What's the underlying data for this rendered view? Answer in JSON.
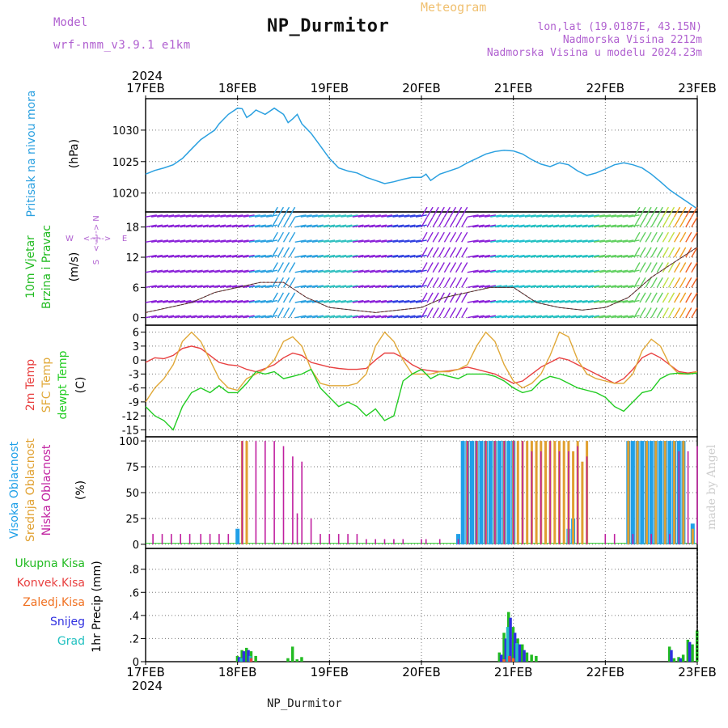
{
  "header": {
    "meteogram": "Meteogram",
    "title": "NP_Durmitor",
    "model_label": "Model",
    "model_name": "wrf-nmm_v3.9.1  e1km",
    "location_lines": [
      "lon,lat (19.0187E, 43.15N)",
      "Nadmorska Visina 2212m",
      "Nadmorska Visina u modelu 2024.23m"
    ]
  },
  "footer": {
    "station": "NP_Durmitor",
    "credit": "made by Angel"
  },
  "colors": {
    "pressure": "#2aa0e0",
    "wind_title": "#22bb22",
    "temp2m": "#e84040",
    "sfc": "#e0a838",
    "dewpt": "#22cc22",
    "high_cloud": "#20a0e8",
    "mid_cloud": "#e0a030",
    "low_cloud": "#c020a0",
    "total_precip": "#22bb22",
    "conv_precip": "#e84040",
    "frozen_precip": "#f07020",
    "snow": "#3030e0",
    "grad": "#20c0c0"
  },
  "chart_data": [
    {
      "type": "line",
      "panel": "pressure",
      "ylabel_left": "Pritisak na nivou mora",
      "ylabel": "(hPa)",
      "yticks": [
        1020,
        1025,
        1030
      ],
      "ylim": [
        1017,
        1035
      ],
      "x_unit": "days from 17FEB 00Z",
      "x": [
        0,
        0.1,
        0.2,
        0.3,
        0.4,
        0.5,
        0.6,
        0.7,
        0.75,
        0.8,
        0.9,
        1.0,
        1.05,
        1.1,
        1.15,
        1.2,
        1.3,
        1.4,
        1.5,
        1.55,
        1.6,
        1.65,
        1.7,
        1.8,
        1.9,
        2.0,
        2.1,
        2.2,
        2.3,
        2.4,
        2.5,
        2.6,
        2.7,
        2.8,
        2.9,
        3.0,
        3.05,
        3.1,
        3.2,
        3.3,
        3.4,
        3.5,
        3.6,
        3.7,
        3.8,
        3.9,
        4.0,
        4.1,
        4.2,
        4.3,
        4.4,
        4.5,
        4.6,
        4.7,
        4.8,
        4.9,
        5.0,
        5.1,
        5.2,
        5.3,
        5.4,
        5.5,
        5.6,
        5.7,
        5.8,
        5.9,
        6.0
      ],
      "values": [
        1023,
        1023.6,
        1024,
        1024.5,
        1025.5,
        1027,
        1028.5,
        1029.5,
        1030,
        1031,
        1032.5,
        1033.5,
        1033.4,
        1032,
        1032.5,
        1033.2,
        1032.5,
        1033.5,
        1032.5,
        1031.2,
        1031.8,
        1032.5,
        1031,
        1029.5,
        1027.5,
        1025.5,
        1024,
        1023.5,
        1023.2,
        1022.5,
        1022,
        1021.5,
        1021.8,
        1022.2,
        1022.5,
        1022.5,
        1023,
        1022,
        1023,
        1023.5,
        1024,
        1024.8,
        1025.5,
        1026.2,
        1026.6,
        1026.8,
        1026.7,
        1026.2,
        1025.3,
        1024.6,
        1024.2,
        1024.8,
        1024.5,
        1023.5,
        1022.8,
        1023.2,
        1023.8,
        1024.5,
        1024.8,
        1024.5,
        1024,
        1023,
        1021.8,
        1020.5,
        1019.5,
        1018.5,
        1017.5
      ],
      "extra_label": "1030"
    },
    {
      "type": "line",
      "panel": "wind",
      "ylabel_left": "10m Vjetar",
      "ylabel_left2": "Brzina i Pravac",
      "ylabel": "(m/s)",
      "yticks": [
        0,
        6,
        12,
        18
      ],
      "ylim": [
        -1.5,
        21
      ],
      "compass": [
        "N",
        "W",
        "E",
        "S",
        "<--|-->"
      ],
      "x": [
        0,
        0.25,
        0.5,
        0.75,
        1.0,
        1.25,
        1.5,
        1.75,
        2.0,
        2.25,
        2.5,
        2.75,
        3.0,
        3.25,
        3.5,
        3.75,
        4.0,
        4.25,
        4.5,
        4.75,
        5.0,
        5.25,
        5.5,
        5.75,
        6.0
      ],
      "values": [
        1,
        2,
        3,
        5,
        6,
        7,
        7,
        4,
        2,
        1.5,
        1,
        1.5,
        2,
        4,
        5,
        6,
        6,
        3,
        2,
        1.5,
        2,
        4,
        8,
        11,
        14
      ]
    },
    {
      "type": "line",
      "panel": "temperature",
      "ylabel_left": [
        "2m Temp",
        "SFC Temp",
        "dewpt Temp"
      ],
      "ylabel": "(C)",
      "yticks": [
        -15,
        -12,
        -9,
        -6,
        -3,
        0,
        3,
        6
      ],
      "ylim": [
        -16.5,
        7.5
      ],
      "x": [
        0,
        0.1,
        0.2,
        0.3,
        0.4,
        0.5,
        0.6,
        0.7,
        0.8,
        0.9,
        1.0,
        1.1,
        1.2,
        1.3,
        1.4,
        1.5,
        1.6,
        1.7,
        1.8,
        1.9,
        2.0,
        2.1,
        2.2,
        2.3,
        2.4,
        2.5,
        2.6,
        2.7,
        2.8,
        2.9,
        3.0,
        3.1,
        3.2,
        3.3,
        3.4,
        3.5,
        3.6,
        3.7,
        3.8,
        3.9,
        4.0,
        4.1,
        4.2,
        4.3,
        4.4,
        4.5,
        4.6,
        4.7,
        4.8,
        4.9,
        5.0,
        5.1,
        5.2,
        5.3,
        5.4,
        5.5,
        5.6,
        5.7,
        5.8,
        5.9,
        6.0
      ],
      "series": [
        {
          "name": "2m Temp",
          "values": [
            -0.5,
            0.5,
            0.3,
            1.0,
            2.5,
            3.0,
            2.5,
            1.0,
            -0.5,
            -1.0,
            -1.2,
            -2.0,
            -2.5,
            -1.8,
            -1.0,
            0.5,
            1.5,
            1.0,
            -0.5,
            -1.0,
            -1.5,
            -1.8,
            -2.0,
            -2.0,
            -1.8,
            0,
            1.5,
            1.5,
            0.5,
            -1.0,
            -2.0,
            -2.3,
            -2.5,
            -2.3,
            -2.0,
            -1.5,
            -2.0,
            -2.5,
            -3.0,
            -4.0,
            -5.0,
            -4.5,
            -3.0,
            -1.5,
            -0.5,
            0.5,
            0.0,
            -1.0,
            -2.0,
            -3.0,
            -4.0,
            -5.0,
            -4.0,
            -2.0,
            0.5,
            1.5,
            0.5,
            -1.0,
            -2.5,
            -2.8,
            -2.5
          ]
        },
        {
          "name": "SFC Temp",
          "values": [
            -9,
            -6,
            -4,
            -1,
            4,
            6,
            4,
            0,
            -4,
            -6,
            -6.5,
            -4,
            -3,
            -2,
            0,
            4,
            5,
            3,
            -2,
            -5,
            -5.5,
            -5.5,
            -5.5,
            -5,
            -3,
            3,
            6,
            4,
            0,
            -3,
            -3,
            -3,
            -2.5,
            -2.5,
            -2,
            -1,
            3,
            6,
            4,
            -1,
            -4.5,
            -6,
            -5,
            -3,
            1,
            6,
            5,
            0,
            -3,
            -4,
            -4.5,
            -5,
            -5,
            -3,
            2,
            4.5,
            3,
            -1,
            -3,
            -3,
            -2.5
          ]
        },
        {
          "name": "dewpt Temp",
          "values": [
            -10,
            -12,
            -13,
            -15,
            -10,
            -7,
            -6,
            -7,
            -5.5,
            -7,
            -7,
            -5,
            -2.5,
            -3,
            -2.5,
            -4,
            -3.5,
            -3,
            -2,
            -6,
            -8,
            -10,
            -9,
            -10,
            -12,
            -10.5,
            -13,
            -12,
            -4.5,
            -3,
            -2,
            -4,
            -3,
            -3.5,
            -4,
            -3,
            -3,
            -3,
            -3.5,
            -4.5,
            -6,
            -7,
            -6.5,
            -4.5,
            -3.5,
            -4,
            -5,
            -6,
            -6.5,
            -7,
            -8,
            -10,
            -11,
            -9,
            -7,
            -6.5,
            -4,
            -3,
            -2.8,
            -3,
            -2.8
          ]
        }
      ]
    },
    {
      "type": "bar",
      "panel": "cloud",
      "ylabel_left": [
        "Visoka Oblacnost",
        "Srednja Oblacnost",
        "Niska Oblacnost"
      ],
      "ylabel": "(%)",
      "yticks": [
        0,
        25,
        50,
        75,
        100
      ],
      "ylim": [
        -4,
        104
      ],
      "series": [
        {
          "name": "Visoka Oblacnost",
          "x": [
            1.0,
            3.4,
            3.45,
            3.5,
            3.55,
            3.6,
            3.65,
            3.7,
            3.75,
            3.8,
            3.85,
            3.9,
            3.95,
            4.0,
            4.6,
            4.65,
            5.25,
            5.3,
            5.35,
            5.4,
            5.45,
            5.5,
            5.55,
            5.6,
            5.65,
            5.7,
            5.75,
            5.8,
            5.85,
            5.95
          ],
          "values": [
            15,
            10,
            100,
            100,
            100,
            100,
            100,
            100,
            100,
            100,
            100,
            100,
            100,
            100,
            15,
            25,
            100,
            100,
            100,
            100,
            100,
            100,
            100,
            100,
            100,
            100,
            100,
            100,
            100,
            20
          ]
        },
        {
          "name": "Srednja Oblacnost",
          "x": [
            1.05,
            1.1,
            3.5,
            3.6,
            3.7,
            3.8,
            3.9,
            4.0,
            4.05,
            4.1,
            4.15,
            4.2,
            4.25,
            4.3,
            4.35,
            4.4,
            4.45,
            4.5,
            4.55,
            4.6,
            4.65,
            4.7,
            4.75,
            4.8,
            5.25,
            5.35,
            5.45,
            5.55,
            5.65,
            5.75,
            5.85,
            5.95
          ],
          "values": [
            100,
            100,
            100,
            100,
            100,
            100,
            100,
            100,
            100,
            100,
            100,
            100,
            100,
            100,
            100,
            100,
            100,
            100,
            100,
            100,
            90,
            100,
            80,
            100,
            100,
            100,
            100,
            100,
            100,
            100,
            100,
            15
          ]
        },
        {
          "name": "Niska Oblacnost",
          "x": [
            0.08,
            0.18,
            0.28,
            0.38,
            0.48,
            0.6,
            0.7,
            0.8,
            0.9,
            1.05,
            1.2,
            1.3,
            1.4,
            1.5,
            1.6,
            1.65,
            1.7,
            1.8,
            1.9,
            2.0,
            2.1,
            2.2,
            2.3,
            2.4,
            2.5,
            2.6,
            2.7,
            2.8,
            3.0,
            3.05,
            3.2,
            3.4,
            3.5,
            3.6,
            3.7,
            3.8,
            3.9,
            4.0,
            4.1,
            4.2,
            4.3,
            4.4,
            4.5,
            4.6,
            4.7,
            4.8,
            5.0,
            5.1,
            5.3,
            5.5,
            5.7,
            5.8,
            5.9,
            6.0
          ],
          "values": [
            10,
            10,
            10,
            10,
            10,
            10,
            10,
            10,
            10,
            100,
            100,
            100,
            100,
            95,
            85,
            30,
            80,
            25,
            10,
            10,
            10,
            10,
            10,
            5,
            5,
            5,
            5,
            5,
            5,
            5,
            5,
            5,
            100,
            100,
            100,
            100,
            100,
            100,
            100,
            90,
            90,
            100,
            90,
            90,
            95,
            85,
            10,
            10,
            10,
            10,
            10,
            90,
            90,
            95
          ]
        }
      ]
    },
    {
      "type": "bar",
      "panel": "precip",
      "ylabel_left": [
        "Ukupna Kisa",
        "Konvek.Kisa",
        "Zaledj.Kisa",
        "Snijeg",
        "Grad"
      ],
      "ylabel": "1hr Precip (mm)",
      "yticks": [
        0,
        0.2,
        0.4,
        0.6,
        0.8
      ],
      "ylim": [
        0,
        0.98
      ],
      "xticks": [
        "17FEB",
        "18FEB",
        "19FEB",
        "20FEB",
        "21FEB",
        "22FEB",
        "23FEB"
      ],
      "xtick_year": "2024",
      "series": [
        {
          "name": "Ukupna Kisa",
          "x": [
            1.0,
            1.05,
            1.1,
            1.15,
            1.2,
            1.55,
            1.6,
            1.65,
            1.7,
            3.85,
            3.9,
            3.95,
            4.0,
            4.05,
            4.1,
            4.15,
            4.2,
            4.25,
            5.7,
            5.75,
            5.8,
            5.85,
            5.9,
            5.95,
            6.0
          ],
          "values": [
            0.05,
            0.1,
            0.12,
            0.09,
            0.05,
            0.03,
            0.13,
            0.02,
            0.04,
            0.08,
            0.25,
            0.43,
            0.3,
            0.2,
            0.15,
            0.08,
            0.06,
            0.05,
            0.13,
            0.03,
            0.04,
            0.06,
            0.19,
            0.15,
            0.27
          ]
        },
        {
          "name": "Snijeg",
          "x": [
            1.02,
            1.07,
            1.12,
            3.87,
            3.92,
            3.97,
            4.02,
            4.07,
            4.12,
            5.72,
            5.82,
            5.92
          ],
          "values": [
            0.04,
            0.09,
            0.1,
            0.06,
            0.2,
            0.38,
            0.25,
            0.15,
            0.1,
            0.1,
            0.03,
            0.17
          ]
        },
        {
          "name": "Grad",
          "x": [
            1.04,
            1.14,
            3.94,
            4.04
          ],
          "values": [
            0.03,
            0.05,
            0.3,
            0.16
          ]
        },
        {
          "name": "Konvek.Kisa",
          "x": [
            1.15,
            3.96
          ],
          "values": [
            0.03,
            0.05
          ]
        },
        {
          "name": "Zaledj.Kisa",
          "x": [
            3.9,
            4.0
          ],
          "values": [
            0.02,
            0.03
          ]
        }
      ]
    }
  ]
}
